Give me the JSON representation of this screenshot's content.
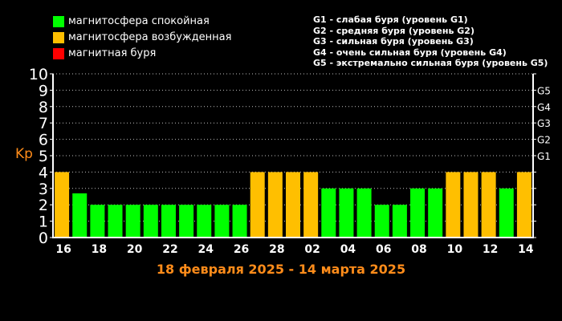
{
  "legend": [
    {
      "label": "магнитосфера спокойная",
      "color": "#00FF00"
    },
    {
      "label": "магнитосфера возбужденная",
      "color": "#FFBF00"
    },
    {
      "label": "магнитная буря",
      "color": "#FF0000"
    }
  ],
  "storm_levels": [
    "G1 - слабая буря (уровень G1)",
    "G2 - средняя буря (уровень G2)",
    "G3 - сильная буря (уровень G3)",
    "G4 - очень сильная буря (уровень G4)",
    "G5 - экстремально сильная буря (уровень G5)"
  ],
  "chart_data": {
    "type": "bar",
    "title": "18 февраля 2025 - 14 марта 2025",
    "ylabel": "Kp",
    "ylim": [
      0,
      10
    ],
    "yticks": [
      "0",
      "1",
      "2",
      "3",
      "4",
      "5",
      "6",
      "7",
      "8",
      "9",
      "10"
    ],
    "right_ticks": [
      {
        "value": 5,
        "label": "G1"
      },
      {
        "value": 6,
        "label": "G2"
      },
      {
        "value": 7,
        "label": "G3"
      },
      {
        "value": 8,
        "label": "G4"
      },
      {
        "value": 9,
        "label": "G5"
      }
    ],
    "grid": true,
    "x_ticks": [
      "16",
      "18",
      "20",
      "22",
      "24",
      "26",
      "28",
      "02",
      "04",
      "06",
      "08",
      "10",
      "12",
      "14"
    ],
    "values": [
      4,
      2.7,
      2,
      2,
      2,
      2,
      2,
      2,
      2,
      2,
      2,
      4,
      4,
      4,
      4,
      3,
      3,
      3,
      2,
      2,
      3,
      3,
      4,
      4,
      4,
      3,
      4
    ],
    "bar_colors": {
      "quiet": "#00FF00",
      "active": "#FFBF00",
      "storm": "#FF0000"
    },
    "axis_color": "#FFFFFF",
    "title_color": "#FF8C1A",
    "ylabel_color": "#FF8C1A"
  }
}
